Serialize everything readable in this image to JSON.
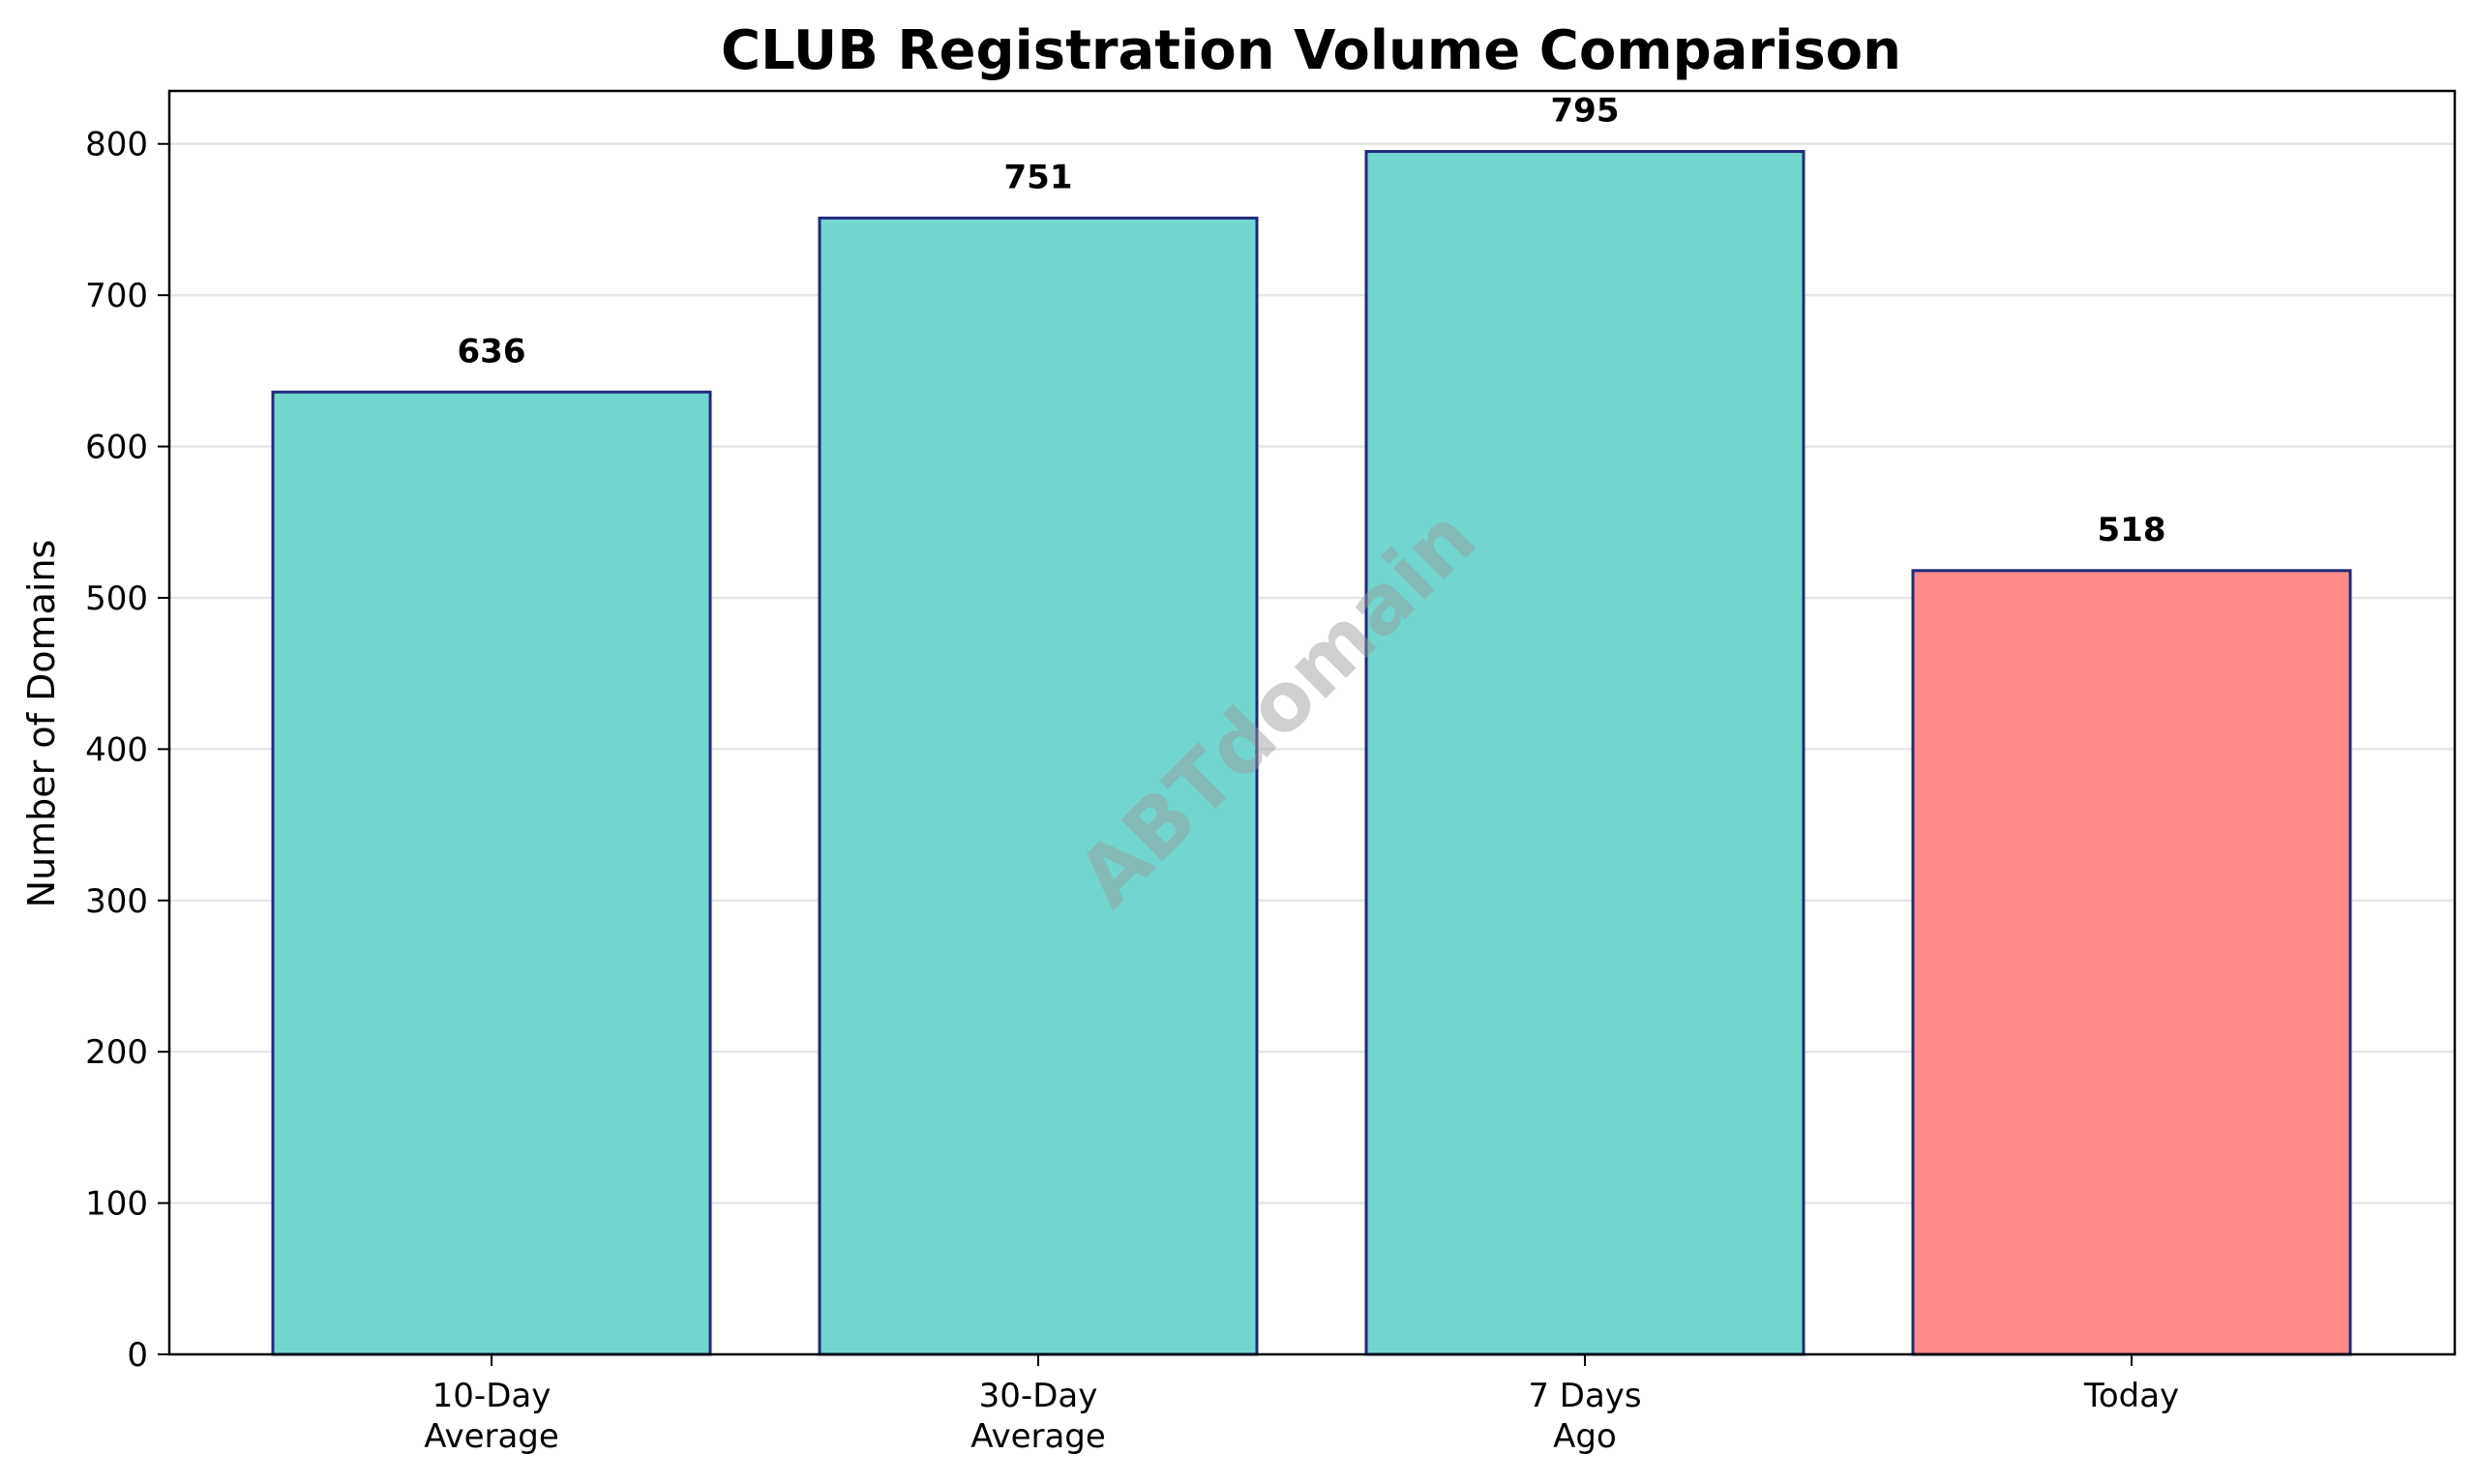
{
  "chart_data": {
    "type": "bar",
    "title": "CLUB Registration Volume Comparison",
    "xlabel": "",
    "ylabel": "Number of Domains",
    "categories": [
      [
        "10-Day",
        "Average"
      ],
      [
        "30-Day",
        "Average"
      ],
      [
        "7 Days",
        "Ago"
      ],
      [
        "Today"
      ]
    ],
    "values": [
      636,
      751,
      795,
      518
    ],
    "value_labels": [
      "636",
      "751",
      "795",
      "518"
    ],
    "bar_colors": [
      "#72D6CF",
      "#72D6CF",
      "#72D6CF",
      "#FF8A87"
    ],
    "bar_edge_color": "#1F2A7A",
    "ylim": [
      0,
      835
    ],
    "yticks": [
      0,
      100,
      200,
      300,
      400,
      500,
      600,
      700,
      800
    ],
    "grid": "y",
    "legend": "none"
  },
  "watermark": "ABTdomain"
}
